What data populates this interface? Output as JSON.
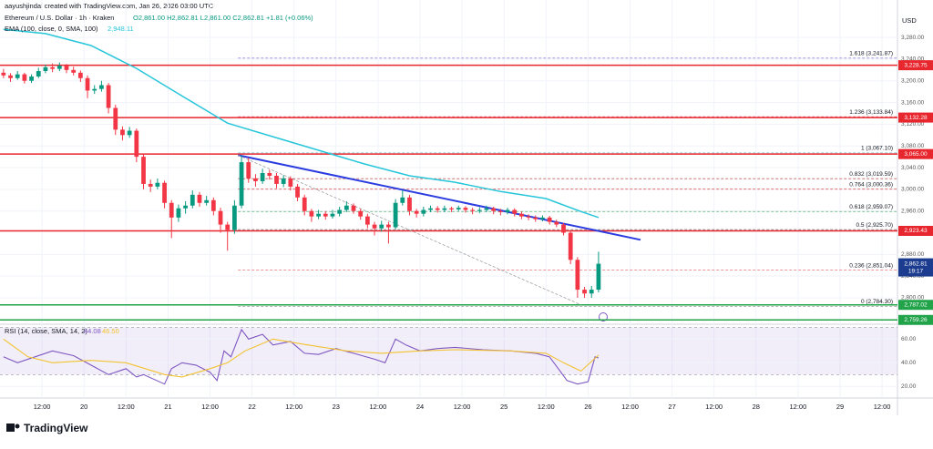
{
  "header": {
    "creator": "aayushjindal created with TradingView.com, Jan 26, 2026 03:00 UTC"
  },
  "footer": {
    "logo": "TradingView"
  },
  "chart_data": [
    {
      "type": "candlestick",
      "title": "Ethereum / U.S. Dollar · 1h · Kraken",
      "ohlc_label": "O2,861.00 H2,862.81 L2,861.00 C2,862.81 +1.81 (+0.06%)",
      "currency": "USD",
      "up_color": "#089981",
      "down_color": "#f23645",
      "xlim": [
        0,
        256.4
      ],
      "ylim": [
        2753,
        3349
      ],
      "xticks": [
        {
          "value": 12,
          "label": "12:00"
        },
        {
          "value": 24,
          "label": "20"
        },
        {
          "value": 36,
          "label": "12:00"
        },
        {
          "value": 48,
          "label": "21"
        },
        {
          "value": 60,
          "label": "12:00"
        },
        {
          "value": 72,
          "label": "22"
        },
        {
          "value": 84,
          "label": "12:00"
        },
        {
          "value": 96,
          "label": "23"
        },
        {
          "value": 108,
          "label": "12:00"
        },
        {
          "value": 120,
          "label": "24"
        },
        {
          "value": 132,
          "label": "12:00"
        },
        {
          "value": 144,
          "label": "25"
        },
        {
          "value": 156,
          "label": "12:00"
        },
        {
          "value": 168,
          "label": "26"
        },
        {
          "value": 180,
          "label": "12:00"
        },
        {
          "value": 192,
          "label": "27"
        },
        {
          "value": 204,
          "label": "12:00"
        },
        {
          "value": 216,
          "label": "28"
        },
        {
          "value": 228,
          "label": "12:00"
        },
        {
          "value": 240,
          "label": "29"
        },
        {
          "value": 252,
          "label": "12:00"
        }
      ],
      "yticks": [
        {
          "value": 3280,
          "label": "3,280.00"
        },
        {
          "value": 3240,
          "label": "3,240.00"
        },
        {
          "value": 3200,
          "label": "3,200.00"
        },
        {
          "value": 3160,
          "label": "3,160.00"
        },
        {
          "value": 3120,
          "label": "3,120.00"
        },
        {
          "value": 3080,
          "label": "3,080.00"
        },
        {
          "value": 3040,
          "label": "3,040.00"
        },
        {
          "value": 3000,
          "label": "3,000.00"
        },
        {
          "value": 2960,
          "label": "2,960.00"
        },
        {
          "value": 2880,
          "label": "2,880.00"
        },
        {
          "value": 2840,
          "label": "2,840.00"
        },
        {
          "value": 2800,
          "label": "2,800.00"
        }
      ],
      "grid": true,
      "x": [
        1,
        3,
        5,
        7,
        9,
        11,
        13,
        15,
        17,
        19,
        21,
        23,
        25,
        27,
        29,
        31,
        33,
        35,
        37,
        39,
        41,
        43,
        45,
        47,
        49,
        51,
        53,
        55,
        57,
        59,
        61,
        63,
        65,
        67,
        69,
        71,
        73,
        75,
        77,
        79,
        81,
        83,
        85,
        87,
        89,
        91,
        93,
        95,
        97,
        99,
        101,
        103,
        105,
        107,
        109,
        111,
        113,
        115,
        117,
        119,
        121,
        123,
        125,
        127,
        129,
        131,
        133,
        135,
        137,
        139,
        141,
        143,
        145,
        147,
        149,
        151,
        153,
        155,
        157,
        159,
        161,
        163,
        165,
        167,
        169,
        171
      ],
      "candles": [
        [
          3215,
          3222,
          3205,
          3210
        ],
        [
          3210,
          3214,
          3198,
          3205
        ],
        [
          3205,
          3218,
          3202,
          3212
        ],
        [
          3212,
          3215,
          3195,
          3200
        ],
        [
          3200,
          3212,
          3196,
          3208
        ],
        [
          3208,
          3224,
          3205,
          3218
        ],
        [
          3218,
          3230,
          3214,
          3225
        ],
        [
          3225,
          3232,
          3216,
          3222
        ],
        [
          3222,
          3234,
          3218,
          3228
        ],
        [
          3228,
          3231,
          3214,
          3220
        ],
        [
          3220,
          3226,
          3210,
          3215
        ],
        [
          3215,
          3219,
          3198,
          3205
        ],
        [
          3205,
          3210,
          3168,
          3182
        ],
        [
          3182,
          3192,
          3176,
          3185
        ],
        [
          3185,
          3200,
          3180,
          3192
        ],
        [
          3192,
          3196,
          3140,
          3150
        ],
        [
          3150,
          3156,
          3100,
          3110
        ],
        [
          3110,
          3116,
          3090,
          3100
        ],
        [
          3100,
          3115,
          3095,
          3108
        ],
        [
          3108,
          3112,
          3050,
          3060
        ],
        [
          3060,
          3066,
          3000,
          3010
        ],
        [
          3010,
          3018,
          2995,
          3005
        ],
        [
          3005,
          3020,
          3000,
          3012
        ],
        [
          3012,
          3016,
          2965,
          2975
        ],
        [
          2975,
          2980,
          2910,
          2948
        ],
        [
          2948,
          2972,
          2940,
          2965
        ],
        [
          2965,
          2978,
          2955,
          2970
        ],
        [
          2970,
          2998,
          2965,
          2990
        ],
        [
          2990,
          2995,
          2968,
          2975
        ],
        [
          2975,
          2988,
          2970,
          2980
        ],
        [
          2980,
          2985,
          2952,
          2960
        ],
        [
          2960,
          2966,
          2920,
          2935
        ],
        [
          2935,
          2940,
          2887,
          2925
        ],
        [
          2925,
          2980,
          2918,
          2970
        ],
        [
          2970,
          3063,
          2965,
          3050
        ],
        [
          3050,
          3058,
          3012,
          3020
        ],
        [
          3020,
          3028,
          3005,
          3015
        ],
        [
          3015,
          3038,
          3010,
          3030
        ],
        [
          3030,
          3036,
          3018,
          3025
        ],
        [
          3025,
          3030,
          3002,
          3010
        ],
        [
          3010,
          3026,
          3004,
          3020
        ],
        [
          3020,
          3024,
          2998,
          3005
        ],
        [
          3005,
          3010,
          2978,
          2985
        ],
        [
          2985,
          2990,
          2952,
          2960
        ],
        [
          2960,
          2964,
          2940,
          2950
        ],
        [
          2950,
          2962,
          2945,
          2955
        ],
        [
          2955,
          2960,
          2944,
          2950
        ],
        [
          2950,
          2962,
          2946,
          2955
        ],
        [
          2955,
          2968,
          2950,
          2962
        ],
        [
          2962,
          2978,
          2958,
          2970
        ],
        [
          2970,
          2974,
          2955,
          2960
        ],
        [
          2960,
          2964,
          2944,
          2950
        ],
        [
          2950,
          2955,
          2928,
          2935
        ],
        [
          2935,
          2940,
          2915,
          2928
        ],
        [
          2928,
          2942,
          2922,
          2935
        ],
        [
          2935,
          2940,
          2900,
          2930
        ],
        [
          2930,
          2982,
          2926,
          2975
        ],
        [
          2975,
          2998,
          2970,
          2985
        ],
        [
          2985,
          2990,
          2952,
          2960
        ],
        [
          2960,
          2964,
          2948,
          2955
        ],
        [
          2955,
          2968,
          2950,
          2962
        ],
        [
          2962,
          2970,
          2958,
          2965
        ],
        [
          2965,
          2969,
          2957,
          2962
        ],
        [
          2962,
          2970,
          2958,
          2965
        ],
        [
          2965,
          2968,
          2958,
          2963
        ],
        [
          2963,
          2970,
          2960,
          2966
        ],
        [
          2966,
          2969,
          2957,
          2962
        ],
        [
          2962,
          2966,
          2954,
          2960
        ],
        [
          2960,
          2967,
          2956,
          2962
        ],
        [
          2962,
          2970,
          2958,
          2965
        ],
        [
          2965,
          2968,
          2954,
          2960
        ],
        [
          2960,
          2964,
          2952,
          2958
        ],
        [
          2958,
          2966,
          2954,
          2962
        ],
        [
          2962,
          2965,
          2950,
          2955
        ],
        [
          2955,
          2959,
          2945,
          2950
        ],
        [
          2950,
          2954,
          2943,
          2948
        ],
        [
          2948,
          2952,
          2940,
          2945
        ],
        [
          2945,
          2952,
          2941,
          2948
        ],
        [
          2948,
          2951,
          2935,
          2940
        ],
        [
          2940,
          2944,
          2930,
          2935
        ],
        [
          2935,
          2938,
          2915,
          2920
        ],
        [
          2920,
          2924,
          2862,
          2870
        ],
        [
          2870,
          2875,
          2800,
          2815
        ],
        [
          2815,
          2820,
          2800,
          2808
        ],
        [
          2808,
          2822,
          2800,
          2815
        ],
        [
          2815,
          2885,
          2810,
          2862.81
        ]
      ],
      "ema": {
        "name": "EMA (100, close, 0, SMA, 100)",
        "value_label": "2,948.11",
        "color": "#26c6da",
        "x": [
          1,
          13,
          26,
          39,
          52,
          65,
          78,
          91,
          104,
          117,
          130,
          143,
          156,
          166,
          171
        ],
        "values": [
          3295,
          3287,
          3265,
          3223,
          3172,
          3122,
          3097,
          3072,
          3047,
          3025,
          3013,
          2996,
          2983,
          2959,
          2948.11
        ]
      },
      "trendlines": [
        {
          "color": "#2c3de0",
          "dash": false,
          "x": [
            68,
            183
          ],
          "values": [
            3063,
            2907
          ]
        },
        {
          "color": "#a0a0a0",
          "dash": true,
          "x": [
            68,
            166
          ],
          "values": [
            3063,
            2787
          ]
        }
      ],
      "levels": [
        {
          "value": 3228.75,
          "label": "3,228.75",
          "color": "#e8262d"
        },
        {
          "value": 3132.28,
          "label": "3,132.28",
          "color": "#e8262d"
        },
        {
          "value": 3065,
          "label": "3,065.00",
          "color": "#e8262d"
        },
        {
          "value": 2923.43,
          "label": "2,923.43",
          "color": "#e8262d"
        },
        {
          "value": 2787.02,
          "label": "2,787.02",
          "color": "#21a34a"
        },
        {
          "value": 2759.26,
          "label": "2,759.26",
          "color": "#21a34a"
        }
      ],
      "fib_start": 68,
      "fib": [
        {
          "value": 3241.87,
          "label": "1.618 (3,241.87)",
          "color": "#7e6bd6"
        },
        {
          "value": 3133.84,
          "label": "1.236 (3,133.84)",
          "color": "#e04c5a"
        },
        {
          "value": 3067.1,
          "label": "1 (3,067.10)",
          "color": "#4fb0c6"
        },
        {
          "value": 3019.59,
          "label": "0.832 (3,019.59)",
          "color": "#b23a3a"
        },
        {
          "value": 3000.36,
          "label": "0.764 (3,000.36)",
          "color": "#d32f2f"
        },
        {
          "value": 2959.07,
          "label": "0.618 (2,959.07)",
          "color": "#2e9e5b"
        },
        {
          "value": 2925.7,
          "label": "0.5 (2,925.70)",
          "color": "#555555"
        },
        {
          "value": 2851.04,
          "label": "0.236 (2,851.04)",
          "color": "#e04c5a"
        },
        {
          "value": 2784.3,
          "label": "0 (2,784.30)",
          "color": "#888888"
        }
      ],
      "last_price": {
        "value": 2862.81,
        "label": "2,862.81",
        "countdown": "19:17",
        "color": "#1c3d8f"
      }
    },
    {
      "type": "line",
      "title": "RSI (14, close, SMA, 14, 2)",
      "ylim": [
        11,
        71
      ],
      "band": [
        30,
        70
      ],
      "band_color": "#7e57c2",
      "yticks": [
        {
          "value": 60,
          "label": "60.00"
        },
        {
          "value": 40,
          "label": "40.00"
        },
        {
          "value": 20,
          "label": "20.00"
        }
      ],
      "series": [
        {
          "color": "#7e57c2",
          "last_label": "44.08",
          "x": [
            1,
            5,
            10,
            15,
            21,
            26,
            31,
            36,
            39,
            41,
            47,
            49,
            52,
            56,
            60,
            62,
            64,
            66,
            69,
            71,
            75,
            78,
            83,
            87,
            91,
            96,
            101,
            107,
            110,
            113,
            116,
            120,
            125,
            130,
            138,
            146,
            153,
            157,
            160,
            162,
            165,
            168,
            170,
            171
          ],
          "values": [
            45,
            40,
            45,
            50,
            46,
            38,
            30,
            35,
            28,
            30,
            22,
            35,
            40,
            38,
            32,
            25,
            50,
            45,
            68,
            60,
            64,
            55,
            58,
            48,
            47,
            52,
            48,
            43,
            40,
            60,
            55,
            50,
            52,
            53,
            51,
            50,
            48,
            45,
            33,
            25,
            22,
            24,
            45,
            44.08
          ]
        },
        {
          "color": "#f2c230",
          "last_label": "46.50",
          "x": [
            1,
            8,
            15,
            26,
            36,
            47,
            52,
            60,
            65,
            70,
            78,
            88,
            99,
            109,
            120,
            130,
            146,
            156,
            161,
            166,
            171
          ],
          "values": [
            60,
            45,
            40,
            42,
            40,
            30,
            28,
            35,
            40,
            50,
            60,
            55,
            50,
            48,
            50,
            51,
            50,
            48,
            40,
            33,
            46.5
          ]
        }
      ]
    }
  ]
}
